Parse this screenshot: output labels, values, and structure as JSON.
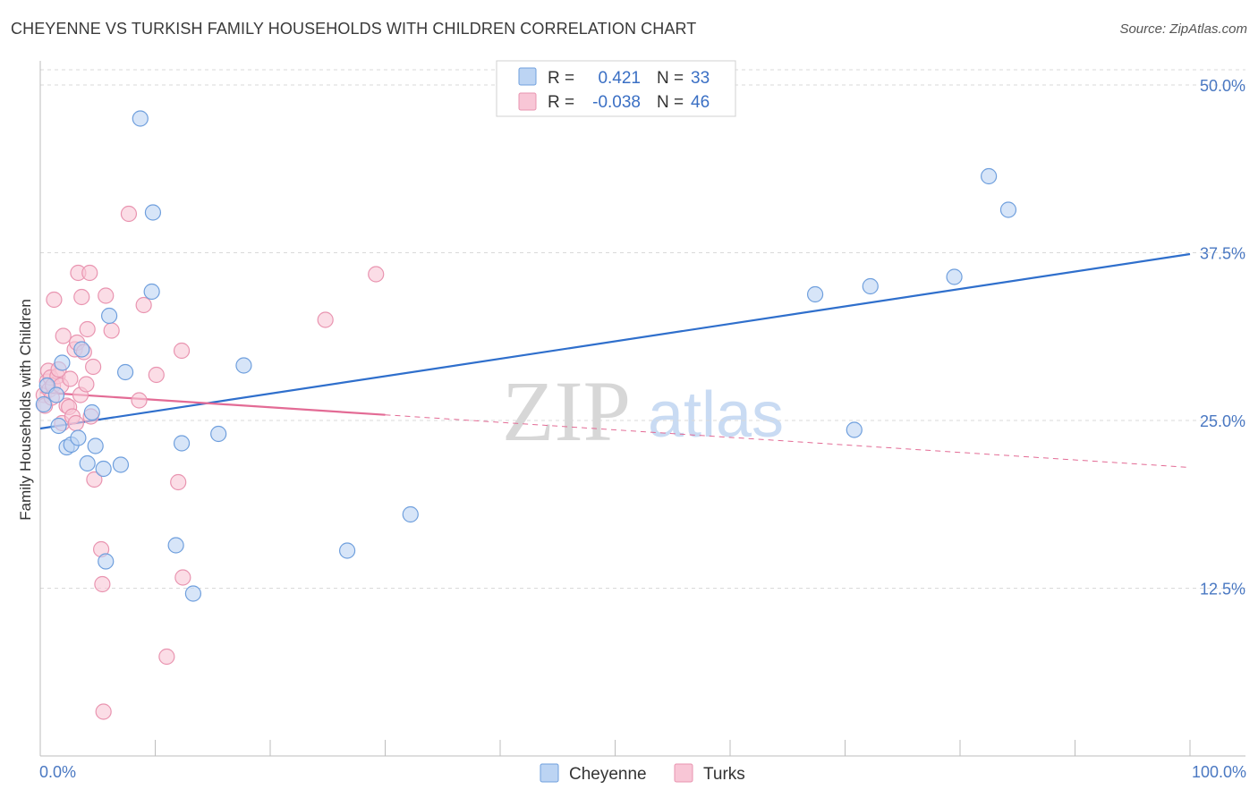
{
  "header": {
    "title": "CHEYENNE VS TURKISH FAMILY HOUSEHOLDS WITH CHILDREN CORRELATION CHART",
    "source": "Source: ZipAtlas.com"
  },
  "legend": {
    "r_label": "R =",
    "n_label": "N =",
    "cheyenne_r": "0.421",
    "cheyenne_n": "33",
    "turks_r": "-0.038",
    "turks_n": "46"
  },
  "bottom_legend": {
    "cheyenne": "Cheyenne",
    "turks": "Turks"
  },
  "watermark": {
    "zip": "ZIP",
    "atlas": "atlas"
  },
  "colors": {
    "cheyenne_fill": "#bcd4f3",
    "cheyenne_stroke": "#6f9fdd",
    "cheyenne_line": "#2f6fcc",
    "turks_fill": "#f8c6d6",
    "turks_stroke": "#e994b0",
    "turks_line": "#e36b95",
    "tick_label": "#4a78c2",
    "grid": "#d9d9d9"
  },
  "chart_data": {
    "type": "scatter",
    "title": "CHEYENNE VS TURKISH FAMILY HOUSEHOLDS WITH CHILDREN CORRELATION CHART",
    "xlabel": "",
    "ylabel": "Family Households with Children",
    "xlim": [
      0,
      100
    ],
    "ylim": [
      0,
      50
    ],
    "x_tick_labels": [
      "0.0%",
      "100.0%"
    ],
    "y_ticks": [
      12.5,
      25.0,
      37.5,
      50.0
    ],
    "y_tick_labels": [
      "12.5%",
      "25.0%",
      "37.5%",
      "50.0%"
    ],
    "grid": true,
    "series": [
      {
        "name": "Cheyenne",
        "r": 0.421,
        "n": 33,
        "trend": {
          "x": [
            0,
            100
          ],
          "y": [
            24.4,
            37.4
          ],
          "dashed_from": null
        },
        "points": [
          [
            0.3,
            26.2
          ],
          [
            0.6,
            27.6
          ],
          [
            1.4,
            26.9
          ],
          [
            1.6,
            24.6
          ],
          [
            1.9,
            29.3
          ],
          [
            2.3,
            23.0
          ],
          [
            2.7,
            23.2
          ],
          [
            3.3,
            23.7
          ],
          [
            3.6,
            30.3
          ],
          [
            4.1,
            21.8
          ],
          [
            4.5,
            25.6
          ],
          [
            4.8,
            23.1
          ],
          [
            5.5,
            21.4
          ],
          [
            5.7,
            14.5
          ],
          [
            6.0,
            32.8
          ],
          [
            7.0,
            21.7
          ],
          [
            7.4,
            28.6
          ],
          [
            8.7,
            47.5
          ],
          [
            9.7,
            34.6
          ],
          [
            9.8,
            40.5
          ],
          [
            11.8,
            15.7
          ],
          [
            12.3,
            23.3
          ],
          [
            13.3,
            12.1
          ],
          [
            15.5,
            24.0
          ],
          [
            17.7,
            29.1
          ],
          [
            26.7,
            15.3
          ],
          [
            32.2,
            18.0
          ],
          [
            67.4,
            34.4
          ],
          [
            70.8,
            24.3
          ],
          [
            72.2,
            35.0
          ],
          [
            79.5,
            35.7
          ],
          [
            82.5,
            43.2
          ],
          [
            84.2,
            40.7
          ]
        ]
      },
      {
        "name": "Turks",
        "r": -0.038,
        "n": 46,
        "trend": {
          "x": [
            0,
            100
          ],
          "y": [
            27.1,
            21.5
          ],
          "dashed_from": 30
        },
        "points": [
          [
            0.3,
            26.9
          ],
          [
            0.4,
            26.1
          ],
          [
            0.6,
            27.9
          ],
          [
            0.7,
            28.7
          ],
          [
            0.8,
            27.3
          ],
          [
            0.9,
            28.2
          ],
          [
            1.0,
            26.7
          ],
          [
            1.1,
            27.6
          ],
          [
            1.2,
            34.0
          ],
          [
            1.5,
            28.3
          ],
          [
            1.6,
            28.8
          ],
          [
            1.8,
            27.6
          ],
          [
            1.9,
            24.8
          ],
          [
            2.0,
            31.3
          ],
          [
            2.3,
            26.1
          ],
          [
            2.5,
            26.0
          ],
          [
            2.6,
            28.1
          ],
          [
            2.8,
            25.3
          ],
          [
            3.0,
            30.3
          ],
          [
            3.1,
            24.8
          ],
          [
            3.2,
            30.8
          ],
          [
            3.3,
            36.0
          ],
          [
            3.5,
            26.9
          ],
          [
            3.6,
            34.2
          ],
          [
            3.8,
            30.1
          ],
          [
            4.0,
            27.7
          ],
          [
            4.1,
            31.8
          ],
          [
            4.3,
            36.0
          ],
          [
            4.4,
            25.3
          ],
          [
            4.6,
            29.0
          ],
          [
            4.7,
            20.6
          ],
          [
            5.3,
            15.4
          ],
          [
            5.4,
            12.8
          ],
          [
            5.5,
            3.3
          ],
          [
            5.7,
            34.3
          ],
          [
            6.2,
            31.7
          ],
          [
            7.7,
            40.4
          ],
          [
            8.6,
            26.5
          ],
          [
            9.0,
            33.6
          ],
          [
            10.1,
            28.4
          ],
          [
            11.0,
            7.4
          ],
          [
            12.0,
            20.4
          ],
          [
            12.3,
            30.2
          ],
          [
            12.4,
            13.3
          ],
          [
            24.8,
            32.5
          ],
          [
            29.2,
            35.9
          ]
        ]
      }
    ]
  }
}
